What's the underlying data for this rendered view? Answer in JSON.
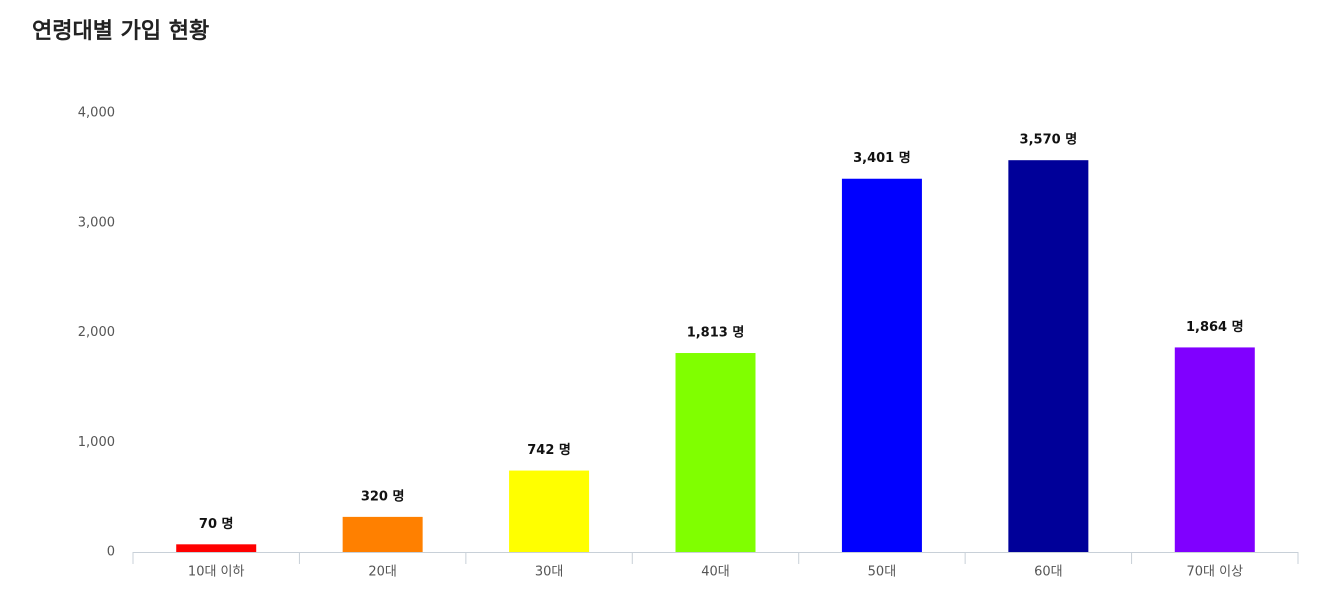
{
  "chart_data": {
    "type": "bar",
    "title": "연령대별 가입 현황",
    "categories": [
      "10대 이하",
      "20대",
      "30대",
      "40대",
      "50대",
      "60대",
      "70대 이상"
    ],
    "values": [
      70,
      320,
      742,
      1813,
      3401,
      3570,
      1864
    ],
    "value_labels": [
      "70 명",
      "320 명",
      "742 명",
      "1,813 명",
      "3,401 명",
      "3,570 명",
      "1,864 명"
    ],
    "colors": [
      "#ff0000",
      "#ff8000",
      "#ffff00",
      "#80ff00",
      "#0000ff",
      "#000099",
      "#8000ff"
    ],
    "ylim": [
      0,
      4000
    ],
    "yticks": [
      0,
      {
        "value": 1000,
        "label": "1,000"
      },
      {
        "value": 2000,
        "label": "2,000"
      },
      {
        "value": 3000,
        "label": "3,000"
      },
      {
        "value": 4000,
        "label": "4,000"
      }
    ]
  }
}
